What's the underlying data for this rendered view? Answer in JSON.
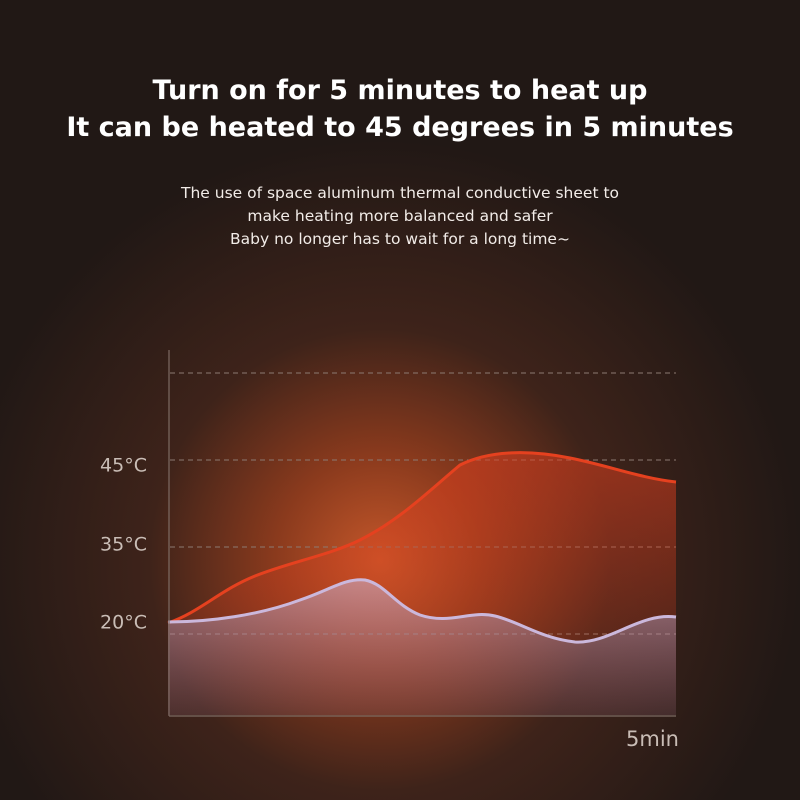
{
  "header": {
    "title_lines": [
      "Turn on for 5 minutes to heat up",
      "It can be heated to 45 degrees in 5 minutes"
    ],
    "description_lines": [
      "The use of space aluminum thermal conductive sheet to",
      "make heating more balanced and safer",
      "Baby no longer has to wait for a long time~"
    ]
  },
  "chart": {
    "y_labels": [
      "45°C",
      "35°C",
      "20°C"
    ],
    "x_label": "5min"
  }
}
